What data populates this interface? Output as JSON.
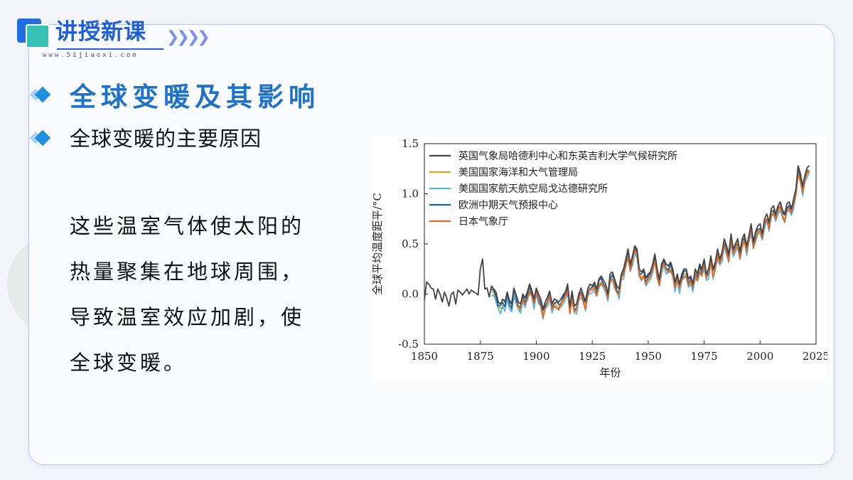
{
  "header": {
    "title": "讲授新课",
    "url": "www.51jiaoxi.com",
    "accent": "#1f5fd3"
  },
  "section": {
    "title": "全球变暖及其影响",
    "subtitle": "全球变暖的主要原因"
  },
  "body": {
    "text": "这些温室气体使太阳的热量聚集在地球周围，导致温室效应加剧，使全球变暖。"
  },
  "chart_data": {
    "type": "line",
    "xlabel": "年份",
    "ylabel": "全球平均温度距平/°C",
    "xlim": [
      1850,
      2025
    ],
    "ylim": [
      -0.5,
      1.5
    ],
    "xticks": [
      1850,
      1875,
      1900,
      1925,
      1950,
      1975,
      2000,
      2025
    ],
    "yticks": [
      -0.5,
      0.0,
      0.5,
      1.0,
      1.5
    ],
    "ytick_labels": [
      "-0.5",
      "0.0",
      "0.5",
      "1.0",
      "1.5"
    ],
    "legend_position": "top-left",
    "grid": false,
    "series": [
      {
        "name": "英国气象局哈德利中心和东英吉利大学气候研究所",
        "color": "#444444",
        "start_year": 1850,
        "values": [
          -0.06,
          0.12,
          0.1,
          0.06,
          0.05,
          -0.05,
          0.05,
          0.0,
          -0.08,
          0.02,
          -0.04,
          -0.12,
          0.0,
          0.02,
          -0.1,
          0.04,
          0.02,
          -0.01,
          0.02,
          0.05,
          0.0,
          0.04,
          0.02,
          0.01,
          -0.01,
          0.25,
          0.35,
          0.05,
          0.06,
          -0.03,
          0.08,
          0.05,
          0.02,
          -0.08,
          -0.1,
          -0.05,
          -0.08,
          0.02,
          -0.06,
          -0.1,
          0.06,
          -0.01,
          -0.08,
          -0.1,
          0.0,
          -0.04,
          0.02,
          0.1,
          0.04,
          -0.05,
          0.06,
          0.0,
          -0.05,
          -0.15,
          -0.08,
          -0.03,
          0.03,
          -0.1,
          -0.05,
          -0.06,
          -0.08,
          -0.05,
          -0.01,
          0.02,
          0.1,
          -0.12,
          0.03,
          -0.12,
          -0.1,
          0.0,
          0.06,
          -0.01,
          -0.07,
          0.05,
          0.1,
          0.08,
          0.12,
          0.05,
          0.15,
          0.18,
          0.14,
          0.1,
          0.0,
          0.2,
          0.22,
          0.15,
          0.08,
          0.05,
          0.2,
          0.25,
          0.35,
          0.45,
          0.3,
          0.38,
          0.48,
          0.45,
          0.25,
          0.22,
          0.25,
          0.16,
          0.2,
          0.22,
          0.3,
          0.4,
          0.25,
          0.15,
          0.3,
          0.35,
          0.3,
          0.28,
          0.32,
          0.25,
          0.12,
          0.2,
          0.1,
          0.2,
          0.25,
          0.25,
          0.15,
          0.18,
          0.1,
          0.25,
          0.2,
          0.3,
          0.25,
          0.35,
          0.2,
          0.25,
          0.38,
          0.25,
          0.32,
          0.45,
          0.35,
          0.42,
          0.55,
          0.48,
          0.4,
          0.6,
          0.45,
          0.5,
          0.55,
          0.42,
          0.55,
          0.6,
          0.48,
          0.58,
          0.7,
          0.52,
          0.62,
          0.68,
          0.7,
          0.6,
          0.75,
          0.8,
          0.72,
          0.85,
          0.88,
          0.8,
          0.88,
          0.92,
          0.84,
          0.8,
          0.9,
          0.92,
          0.85,
          0.95,
          1.05,
          1.28,
          1.2,
          1.08,
          1.18,
          1.26,
          1.28
        ]
      },
      {
        "name": "美国国家海洋和大气管理局",
        "color": "#d9a520",
        "start_year": 1880
      },
      {
        "name": "美国国家航天航空局戈达德研究所",
        "color": "#5ab4e0",
        "start_year": 1880
      },
      {
        "name": "欧洲中期天气预报中心",
        "color": "#1f5fa0",
        "start_year": 1880
      },
      {
        "name": "日本气象厅",
        "color": "#d96a2a",
        "start_year": 1891
      }
    ]
  }
}
